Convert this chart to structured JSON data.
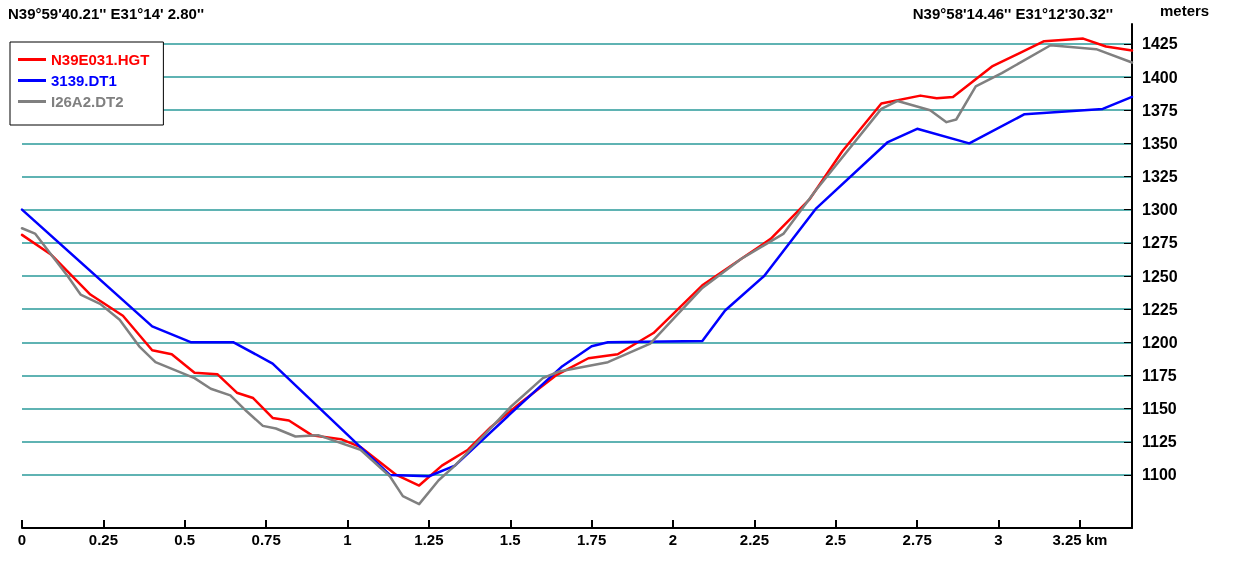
{
  "chart_data": {
    "type": "line",
    "ylabel": "meters",
    "annotations": [
      "N39°59'40.21'' E31°14' 2.80''",
      "N39°58'14.46'' E31°12'30.32''"
    ],
    "xlim": [
      0,
      3.41
    ],
    "xticks": [
      0,
      0.25,
      0.5,
      0.75,
      1,
      1.25,
      1.5,
      1.75,
      2,
      2.25,
      2.5,
      2.75,
      3,
      {
        "value": 3.25,
        "label": "3.25 km"
      }
    ],
    "ylim": [
      1060,
      1440
    ],
    "yticks": [
      1100,
      1125,
      1150,
      1175,
      1200,
      1225,
      1250,
      1275,
      1300,
      1325,
      1350,
      1375,
      1400,
      1425
    ],
    "grid": "y",
    "legend": "top left",
    "marker": "none",
    "line_style": "solid",
    "series": [
      {
        "name": "N39E031.HGT",
        "color": "#ff0000",
        "x": [
          0,
          0.09,
          0.21,
          0.31,
          0.4,
          0.46,
          0.53,
          0.6,
          0.66,
          0.71,
          0.77,
          0.82,
          0.89,
          0.98,
          1.04,
          1.15,
          1.22,
          1.29,
          1.37,
          1.44,
          1.53,
          1.64,
          1.74,
          1.83,
          1.94,
          2.09,
          2.21,
          2.3,
          2.42,
          2.52,
          2.64,
          2.76,
          2.81,
          2.86,
          2.98,
          3.14,
          3.26,
          3.33,
          3.41
        ],
        "values": [
          1281,
          1266,
          1236,
          1220,
          1194,
          1191,
          1177,
          1176,
          1162,
          1158,
          1143,
          1141,
          1130,
          1127,
          1121,
          1100,
          1092,
          1107,
          1119,
          1136,
          1154,
          1175,
          1188,
          1191,
          1207,
          1243,
          1263,
          1278,
          1308,
          1344,
          1380,
          1386,
          1384,
          1385,
          1408,
          1427,
          1429,
          1423,
          1420
        ]
      },
      {
        "name": "3139.DT1",
        "color": "#0000ff",
        "x": [
          0,
          0.4,
          0.52,
          0.65,
          0.77,
          1.04,
          1.13,
          1.25,
          1.33,
          1.5,
          1.66,
          1.75,
          1.8,
          2.09,
          2.16,
          2.28,
          2.44,
          2.66,
          2.75,
          2.91,
          3.08,
          3.32,
          3.41
        ],
        "values": [
          1300,
          1212,
          1200,
          1200,
          1184,
          1121,
          1100,
          1099,
          1107,
          1146,
          1182,
          1197,
          1200,
          1201,
          1224,
          1250,
          1301,
          1351,
          1361,
          1350,
          1372,
          1376,
          1385
        ]
      },
      {
        "name": "I26A2.DT2",
        "color": "#808080",
        "x": [
          0,
          0.04,
          0.14,
          0.18,
          0.24,
          0.3,
          0.36,
          0.41,
          0.47,
          0.53,
          0.58,
          0.64,
          0.69,
          0.74,
          0.78,
          0.84,
          0.91,
          0.98,
          1.04,
          1.13,
          1.17,
          1.22,
          1.28,
          1.33,
          1.4,
          1.5,
          1.6,
          1.65,
          1.8,
          1.93,
          2.09,
          2.21,
          2.34,
          2.44,
          2.64,
          2.69,
          2.79,
          2.84,
          2.87,
          2.93,
          3.01,
          3.16,
          3.3,
          3.41
        ],
        "values": [
          1286,
          1282,
          1250,
          1236,
          1229,
          1217,
          1197,
          1185,
          1179,
          1173,
          1165,
          1160,
          1148,
          1137,
          1135,
          1129,
          1130,
          1124,
          1119,
          1099,
          1084,
          1078,
          1096,
          1107,
          1125,
          1151,
          1173,
          1178,
          1185,
          1199,
          1241,
          1263,
          1282,
          1315,
          1376,
          1382,
          1375,
          1366,
          1368,
          1393,
          1403,
          1424,
          1421,
          1411
        ]
      }
    ]
  }
}
